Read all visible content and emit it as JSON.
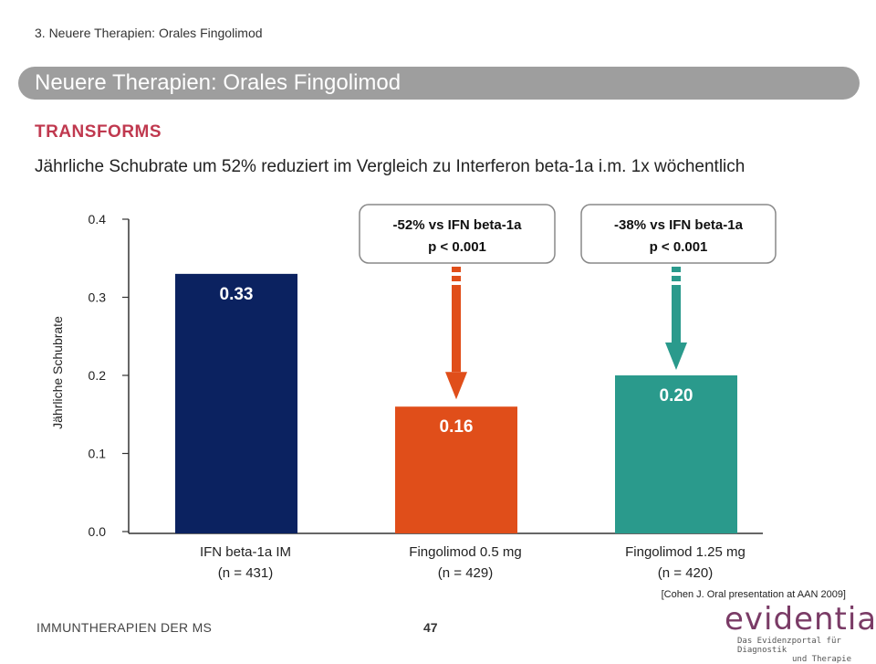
{
  "breadcrumb": "3. Neuere Therapien: Orales Fingolimod",
  "title": "Neuere Therapien: Orales Fingolimod",
  "section_label": "TRANSFORMS",
  "description": "Jährliche Schubrate um 52% reduziert im Vergleich zu Interferon beta-1a i.m. 1x wöchentlich",
  "chart_data": {
    "type": "bar",
    "ylabel": "Jährliche Schubrate",
    "ylim": [
      0,
      0.4
    ],
    "yticks": [
      "0.0",
      "0.1",
      "0.2",
      "0.3",
      "0.4"
    ],
    "bars": [
      {
        "label_line1": "IFN beta-1a IM",
        "label_line2": "(n = 431)",
        "value": 0.33,
        "value_label": "0.33",
        "color": "#0b2260"
      },
      {
        "label_line1": "Fingolimod 0.5 mg",
        "label_line2": "(n = 429)",
        "value": 0.16,
        "value_label": "0.16",
        "color": "#e04e1a"
      },
      {
        "label_line1": "Fingolimod 1.25 mg",
        "label_line2": "(n = 420)",
        "value": 0.2,
        "value_label": "0.20",
        "color": "#2a9a8c"
      }
    ],
    "annotations": [
      {
        "line1": "-52% vs IFN beta-1a",
        "line2": "p < 0.001",
        "arrow_color": "#e04e1a",
        "target_bar": 1
      },
      {
        "line1": "-38% vs IFN beta-1a",
        "line2": "p < 0.001",
        "arrow_color": "#2a9a8c",
        "target_bar": 2
      }
    ]
  },
  "citation": "[Cohen J. Oral presentation at AAN 2009]",
  "footer": {
    "left_text": "IMMUNTHERAPIEN DER MS",
    "page_number": "47"
  },
  "logo": {
    "word": "evidentia",
    "subline1": "Das Evidenzportal für Diagnostik",
    "subline2": "und Therapie"
  }
}
